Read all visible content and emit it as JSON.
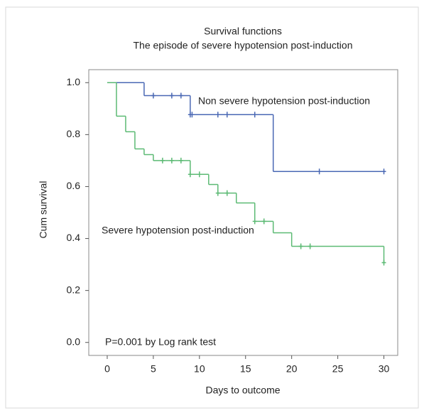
{
  "chart_data": {
    "type": "km",
    "title": "Survival functions",
    "subtitle": "The episode of severe hypotension post-induction",
    "x_label": "Days to outcome",
    "y_label": "Cum survival",
    "annotation": "P=0.001 by Log rank test",
    "xlim": [
      -2,
      31.5
    ],
    "ylim": [
      -0.05,
      1.05
    ],
    "xticks": [
      0,
      5,
      10,
      15,
      20,
      25,
      30
    ],
    "yticks": [
      {
        "value": 0,
        "label": "0.0"
      },
      {
        "value": 0.2,
        "label": "0.2"
      },
      {
        "value": 0.4,
        "label": "0.4"
      },
      {
        "value": 0.6,
        "label": "0.6"
      },
      {
        "value": 0.8,
        "label": "0.8"
      },
      {
        "value": 1,
        "label": "1.0"
      }
    ],
    "series": [
      {
        "name": "Non severe hypotension post-induction",
        "color": "#4a68b4",
        "x": [
          0,
          4,
          9,
          18,
          30
        ],
        "values": [
          1.0,
          0.95,
          0.877,
          0.658,
          0.658
        ],
        "censor_x": [
          5,
          7,
          8,
          9,
          9.2,
          12,
          13,
          16,
          23,
          30
        ],
        "censor_values": [
          0.95,
          0.95,
          0.95,
          0.877,
          0.877,
          0.877,
          0.877,
          0.877,
          0.658,
          0.658
        ]
      },
      {
        "name": "Severe hypotension post-induction",
        "color": "#5cba74",
        "x": [
          0,
          1,
          2,
          3,
          4,
          5,
          9,
          11,
          12,
          14,
          16,
          18,
          20,
          30
        ],
        "values": [
          1.0,
          0.871,
          0.811,
          0.745,
          0.723,
          0.7,
          0.647,
          0.608,
          0.575,
          0.537,
          0.466,
          0.422,
          0.37,
          0.307
        ],
        "censor_x": [
          6,
          7,
          8,
          9,
          10,
          12,
          13,
          16,
          17,
          21,
          22,
          30
        ],
        "censor_values": [
          0.7,
          0.7,
          0.7,
          0.647,
          0.647,
          0.575,
          0.575,
          0.466,
          0.466,
          0.37,
          0.37,
          0.307
        ]
      }
    ]
  }
}
